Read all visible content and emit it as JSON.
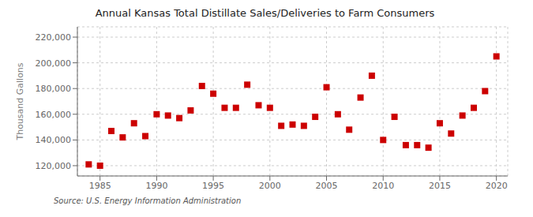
{
  "chart_data": {
    "type": "scatter",
    "title": "Annual Kansas Total Distillate Sales/Deliveries to Farm Consumers",
    "ylabel": "Thousand Gallons",
    "annotation": "Source: U.S. Energy Information Administration",
    "x": [
      1984,
      1985,
      1986,
      1987,
      1988,
      1989,
      1990,
      1991,
      1992,
      1993,
      1994,
      1995,
      1996,
      1997,
      1998,
      1999,
      2000,
      2001,
      2002,
      2003,
      2004,
      2005,
      2006,
      2007,
      2008,
      2009,
      2010,
      2011,
      2012,
      2013,
      2014,
      2015,
      2016,
      2017,
      2018,
      2019,
      2020
    ],
    "values": [
      121000,
      120000,
      147000,
      142000,
      153000,
      143000,
      160000,
      159000,
      157000,
      163000,
      182000,
      176000,
      165000,
      165000,
      183000,
      167000,
      165000,
      151000,
      152000,
      151000,
      158000,
      181000,
      160000,
      148000,
      173000,
      190000,
      140000,
      158000,
      136000,
      136000,
      134000,
      153000,
      145000,
      159000,
      165000,
      178000,
      205000
    ],
    "color": "#cc0000",
    "marker": "square",
    "xlim": [
      1983,
      2021
    ],
    "ylim": [
      112000,
      228000
    ],
    "xticks": [
      1985,
      1990,
      1995,
      2000,
      2005,
      2010,
      2015,
      2020
    ],
    "yticks": [
      {
        "value": 120000,
        "label": "120,000"
      },
      {
        "value": 140000,
        "label": "140,000"
      },
      {
        "value": 160000,
        "label": "160,000"
      },
      {
        "value": 180000,
        "label": "180,000"
      },
      {
        "value": 200000,
        "label": "200,000"
      },
      {
        "value": 220000,
        "label": "220,000"
      }
    ],
    "grid": true
  }
}
